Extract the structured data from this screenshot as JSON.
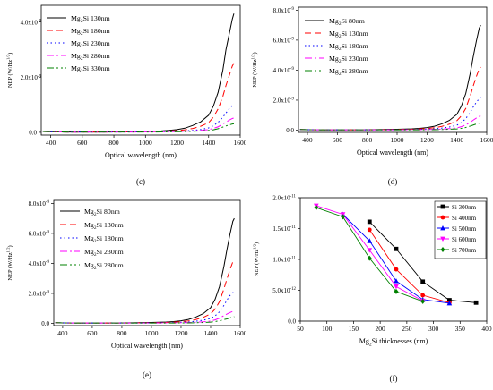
{
  "chart_data": [
    {
      "type": "line",
      "panel_label": "(c)",
      "xlabel": "Optical wavelength (nm)",
      "ylabel": "NEP (W/Hz^1/2)",
      "xlim": [
        340,
        1600
      ],
      "ylim": [
        -1e-10,
        4.6e-09
      ],
      "xticks": [
        400,
        600,
        800,
        1000,
        1200,
        1400,
        1600
      ],
      "yticks": [
        0,
        2e-09,
        4e-09
      ],
      "ytick_labels": [
        "0.0",
        "2.0x10^-9",
        "4.0x10^-9"
      ],
      "legend_position": "top-left",
      "x": [
        350,
        400,
        500,
        600,
        700,
        800,
        900,
        1000,
        1100,
        1150,
        1200,
        1250,
        1300,
        1350,
        1400,
        1430,
        1460,
        1490,
        1510,
        1530,
        1550,
        1560
      ],
      "series": [
        {
          "name": "Mg2Si 130nm",
          "color": "#000000",
          "dash": "",
          "values": [
            3e-11,
            2e-11,
            1e-11,
            1e-11,
            1e-11,
            1.5e-11,
            2e-11,
            3e-11,
            5e-11,
            7e-11,
            1e-10,
            1.5e-10,
            2.5e-10,
            3.8e-10,
            6.2e-10,
            9.5e-10,
            1.45e-09,
            2.25e-09,
            3e-09,
            3.55e-09,
            4.1e-09,
            4.3e-09
          ]
        },
        {
          "name": "Mg2Si 180nm",
          "color": "#ff0000",
          "dash": "7,4",
          "values": [
            3e-11,
            2e-11,
            1e-11,
            1e-11,
            1e-11,
            1.2e-11,
            1.5e-11,
            2e-11,
            3.5e-11,
            4.5e-11,
            6e-11,
            9e-11,
            1.4e-10,
            2.2e-10,
            3.5e-10,
            5.5e-10,
            8.5e-10,
            1.3e-09,
            1.7e-09,
            2.05e-09,
            2.4e-09,
            2.5e-09
          ]
        },
        {
          "name": "Mg2Si 230nm",
          "color": "#0000ff",
          "dash": "1.5,3",
          "values": [
            3e-11,
            2e-11,
            1e-11,
            1e-11,
            1e-11,
            1e-11,
            1.2e-11,
            1.5e-11,
            2e-11,
            2.5e-11,
            3.5e-11,
            5e-11,
            7e-11,
            1e-10,
            1.6e-10,
            2.4e-10,
            3.6e-10,
            5.5e-10,
            7e-10,
            8.5e-10,
            9.7e-10,
            1e-09
          ]
        },
        {
          "name": "Mg2Si 280nm",
          "color": "#ff00ff",
          "dash": "8,3,2,3",
          "values": [
            3e-11,
            2e-11,
            1e-11,
            1e-11,
            1e-11,
            1e-11,
            1e-11,
            1.2e-11,
            1.5e-11,
            2e-11,
            2.5e-11,
            3.5e-11,
            5e-11,
            7e-11,
            1e-10,
            1.4e-10,
            2e-10,
            3e-10,
            3.7e-10,
            4.4e-10,
            5e-10,
            5.2e-10
          ]
        },
        {
          "name": "Mg2Si 330nm",
          "color": "#008000",
          "dash": "8,3,2,3,2,3",
          "values": [
            3e-11,
            2e-11,
            1e-11,
            1e-11,
            1e-11,
            1e-11,
            1e-11,
            1e-11,
            1.2e-11,
            1.5e-11,
            2e-11,
            2.5e-11,
            3.5e-11,
            5e-11,
            7e-11,
            9e-11,
            1.3e-10,
            1.9e-10,
            2.3e-10,
            2.7e-10,
            3e-10,
            3.1e-10
          ]
        }
      ]
    },
    {
      "type": "line",
      "panel_label": "(d)",
      "xlabel": "Optical wavelength (nm)",
      "ylabel": "NEP (W/Hz^1/2)",
      "xlim": [
        340,
        1600
      ],
      "ylim": [
        -1.5e-10,
        8.2e-09
      ],
      "xticks": [
        400,
        600,
        800,
        1000,
        1200,
        1400,
        1600
      ],
      "yticks": [
        0,
        2e-09,
        4e-09,
        6e-09,
        8e-09
      ],
      "ytick_labels": [
        "0.0",
        "2.0x10^-9",
        "4.0x10^-9",
        "6.0x10^-9",
        "8.0x10^-9"
      ],
      "legend_position": "top-left",
      "x": [
        350,
        400,
        500,
        600,
        700,
        800,
        900,
        1000,
        1100,
        1150,
        1200,
        1250,
        1300,
        1350,
        1400,
        1430,
        1460,
        1490,
        1510,
        1530,
        1550,
        1560
      ],
      "series": [
        {
          "name": "Mg2Si 80nm",
          "color": "#000000",
          "dash": "",
          "values": [
            4e-11,
            3e-11,
            2e-11,
            2e-11,
            2e-11,
            3e-11,
            4e-11,
            6e-11,
            9e-11,
            1.2e-10,
            1.7e-10,
            2.6e-10,
            4.2e-10,
            6.5e-10,
            1.05e-09,
            1.6e-09,
            2.45e-09,
            3.8e-09,
            4.9e-09,
            5.9e-09,
            6.8e-09,
            7e-09
          ]
        },
        {
          "name": "Mg2Si 130nm",
          "color": "#ff0000",
          "dash": "7,4",
          "values": [
            4e-11,
            3e-11,
            2e-11,
            2e-11,
            2e-11,
            2e-11,
            3e-11,
            4e-11,
            6e-11,
            8e-11,
            1.1e-10,
            1.6e-10,
            2.5e-10,
            4e-10,
            6.3e-10,
            9.5e-10,
            1.45e-09,
            2.3e-09,
            2.95e-09,
            3.55e-09,
            4.1e-09,
            4.2e-09
          ]
        },
        {
          "name": "Mg2Si 180nm",
          "color": "#0000ff",
          "dash": "1.5,3",
          "values": [
            4e-11,
            3e-11,
            2e-11,
            2e-11,
            2e-11,
            2e-11,
            2e-11,
            3e-11,
            4e-11,
            5e-11,
            7e-11,
            9e-11,
            1.4e-10,
            2.1e-10,
            3.3e-10,
            5e-10,
            7.7e-10,
            1.2e-09,
            1.55e-09,
            1.85e-09,
            2.1e-09,
            2.2e-09
          ]
        },
        {
          "name": "Mg2Si 230nm",
          "color": "#ff00ff",
          "dash": "8,3,2,3",
          "values": [
            4e-11,
            3e-11,
            2e-11,
            2e-11,
            2e-11,
            2e-11,
            2e-11,
            2e-11,
            3e-11,
            3e-11,
            4e-11,
            5e-11,
            7e-11,
            1e-10,
            1.5e-10,
            2.3e-10,
            3.5e-10,
            5.2e-10,
            6.7e-10,
            8e-10,
            9.2e-10,
            9.5e-10
          ]
        },
        {
          "name": "Mg2Si 280nm",
          "color": "#008000",
          "dash": "8,3,2,3,2,3",
          "values": [
            4e-11,
            3e-11,
            2e-11,
            2e-11,
            2e-11,
            2e-11,
            2e-11,
            2e-11,
            2e-11,
            2e-11,
            3e-11,
            3e-11,
            4e-11,
            6e-11,
            8e-11,
            1.2e-10,
            1.8e-10,
            2.7e-10,
            3.4e-10,
            4.1e-10,
            4.7e-10,
            5e-10
          ]
        }
      ]
    },
    {
      "type": "line",
      "panel_label": "(e)",
      "xlabel": "Optical wavelength (nm)",
      "ylabel": "NEP (W/Hz^1/2)",
      "xlim": [
        340,
        1600
      ],
      "ylim": [
        -1.5e-10,
        8.2e-09
      ],
      "xticks": [
        400,
        600,
        800,
        1000,
        1200,
        1400,
        1600
      ],
      "yticks": [
        0,
        2e-09,
        4e-09,
        6e-09,
        8e-09
      ],
      "ytick_labels": [
        "0.0",
        "2.0x10^-9",
        "4.0x10^-9",
        "6.0x10^-9",
        "8.0x10^-9"
      ],
      "legend_position": "top-left",
      "x": [
        350,
        400,
        500,
        600,
        700,
        800,
        900,
        1000,
        1100,
        1150,
        1200,
        1250,
        1300,
        1350,
        1400,
        1430,
        1460,
        1490,
        1510,
        1530,
        1550,
        1560
      ],
      "series": [
        {
          "name": "Mg2Si 80nm",
          "color": "#000000",
          "dash": "",
          "values": [
            4e-11,
            3e-11,
            2e-11,
            2e-11,
            2e-11,
            3e-11,
            4e-11,
            6e-11,
            9e-11,
            1.2e-10,
            1.7e-10,
            2.6e-10,
            4.2e-10,
            6.5e-10,
            1.05e-09,
            1.6e-09,
            2.45e-09,
            3.8e-09,
            4.9e-09,
            5.9e-09,
            6.8e-09,
            7e-09
          ]
        },
        {
          "name": "Mg2Si 130nm",
          "color": "#ff0000",
          "dash": "7,4",
          "values": [
            4e-11,
            3e-11,
            2e-11,
            2e-11,
            2e-11,
            2e-11,
            3e-11,
            4e-11,
            6e-11,
            8e-11,
            1.1e-10,
            1.6e-10,
            2.5e-10,
            4e-10,
            6.3e-10,
            9.5e-10,
            1.45e-09,
            2.3e-09,
            2.95e-09,
            3.55e-09,
            4.1e-09,
            4.2e-09
          ]
        },
        {
          "name": "Mg2Si 180nm",
          "color": "#0000ff",
          "dash": "1.5,3",
          "values": [
            4e-11,
            3e-11,
            2e-11,
            2e-11,
            2e-11,
            2e-11,
            2e-11,
            3e-11,
            4e-11,
            5e-11,
            7e-11,
            9e-11,
            1.4e-10,
            2.1e-10,
            3.3e-10,
            5e-10,
            7.7e-10,
            1.2e-09,
            1.55e-09,
            1.85e-09,
            2.05e-09,
            2.1e-09
          ]
        },
        {
          "name": "Mg2Si 230nm",
          "color": "#ff00ff",
          "dash": "8,3,2,3",
          "values": [
            4e-11,
            3e-11,
            2e-11,
            2e-11,
            2e-11,
            2e-11,
            2e-11,
            2e-11,
            3e-11,
            3e-11,
            4e-11,
            5e-11,
            7e-11,
            1e-10,
            1.5e-10,
            2.3e-10,
            3.5e-10,
            5.2e-10,
            6.2e-10,
            7.2e-10,
            8e-10,
            8.2e-10
          ]
        },
        {
          "name": "Mg2Si 280nm",
          "color": "#008000",
          "dash": "8,3,2,3,2,3",
          "values": [
            4e-11,
            3e-11,
            2e-11,
            2e-11,
            2e-11,
            2e-11,
            2e-11,
            2e-11,
            2e-11,
            2e-11,
            3e-11,
            3e-11,
            4e-11,
            6e-11,
            8e-11,
            1.2e-10,
            1.7e-10,
            2.5e-10,
            3e-10,
            3.6e-10,
            4.2e-10,
            4.5e-10
          ]
        }
      ]
    },
    {
      "type": "line",
      "panel_label": "(f)",
      "xlabel": "Mg2Si thicknesses (nm)",
      "ylabel": "NEP (W/Hz^1/2)",
      "xlim": [
        50,
        400
      ],
      "ylim": [
        0,
        2e-11
      ],
      "xticks": [
        50,
        100,
        150,
        200,
        250,
        300,
        350,
        400
      ],
      "yticks": [
        0,
        5e-12,
        1e-11,
        1.5e-11,
        2e-11
      ],
      "ytick_labels": [
        "0.0",
        "5.0x10^-12",
        "1.0x10^-11",
        "1.5x10^-11",
        "2.0x10^-11"
      ],
      "legend_position": "top-right",
      "series": [
        {
          "name": "Si 300nm",
          "color": "#000000",
          "marker": "square",
          "x": [
            180,
            230,
            280,
            330,
            380
          ],
          "values": [
            1.61e-11,
            1.17e-11,
            6.4e-12,
            3.4e-12,
            3e-12
          ]
        },
        {
          "name": "Si 400nm",
          "color": "#ff0000",
          "marker": "circle",
          "x": [
            180,
            230,
            280,
            330
          ],
          "values": [
            1.48e-11,
            8.4e-12,
            4.2e-12,
            3e-12
          ]
        },
        {
          "name": "Si 500nm",
          "color": "#0000ff",
          "marker": "triangle-up",
          "x": [
            130,
            180,
            230,
            280,
            330
          ],
          "values": [
            1.73e-11,
            1.3e-11,
            6.5e-12,
            3.5e-12,
            2.9e-12
          ]
        },
        {
          "name": "Si 600nm",
          "color": "#ff00ff",
          "marker": "triangle-down",
          "x": [
            80,
            130,
            180,
            230,
            280
          ],
          "values": [
            1.87e-11,
            1.73e-11,
            1.15e-11,
            5.6e-12,
            3.3e-12
          ]
        },
        {
          "name": "Si 700nm",
          "color": "#008000",
          "marker": "diamond",
          "x": [
            80,
            130,
            180,
            230,
            280
          ],
          "values": [
            1.84e-11,
            1.69e-11,
            1.02e-11,
            4.8e-12,
            3.2e-12
          ]
        }
      ]
    }
  ]
}
